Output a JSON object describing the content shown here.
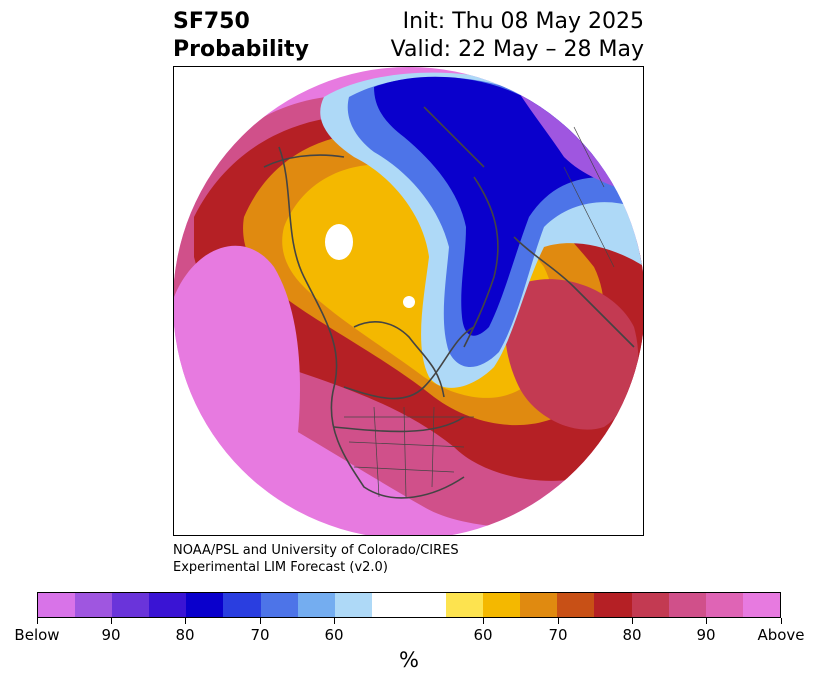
{
  "title": {
    "left_line1": "SF750",
    "left_line2": "Probability",
    "right_line1": "Init: Thu 08 May 2025",
    "right_line2": "Valid: 22 May – 28 May"
  },
  "credit": {
    "line1": "NOAA/PSL and University of Colorado/CIRES",
    "line2": "Experimental LIM Forecast (v2.0)"
  },
  "colorbar": {
    "unit": "%",
    "colors": [
      "#d873e8",
      "#9f56e0",
      "#6a34da",
      "#3a14d4",
      "#0a00cc",
      "#2a3ee0",
      "#4d74e8",
      "#74adf0",
      "#aed9f7",
      "#ffffff",
      "#fde34f",
      "#f4b800",
      "#e08a10",
      "#c85016",
      "#b52025",
      "#c33a52",
      "#d0508a",
      "#df64b5",
      "#e77ae0"
    ],
    "labels": [
      "Below",
      "90",
      "80",
      "70",
      "60",
      "60",
      "70",
      "80",
      "90",
      "Above"
    ]
  },
  "map": {
    "projection": "north-polar-stereographic",
    "field": "SF750 probability",
    "region_colors": {
      "above_strong": "#e77ae0",
      "above_mid": "#d0508a",
      "above_red": "#b52025",
      "above_orange": "#e08a10",
      "above_yellow": "#f4b800",
      "below_light": "#aed9f7",
      "below_blue": "#4d74e8",
      "below_deep": "#0a00cc",
      "below_purple": "#9f56e0"
    }
  }
}
